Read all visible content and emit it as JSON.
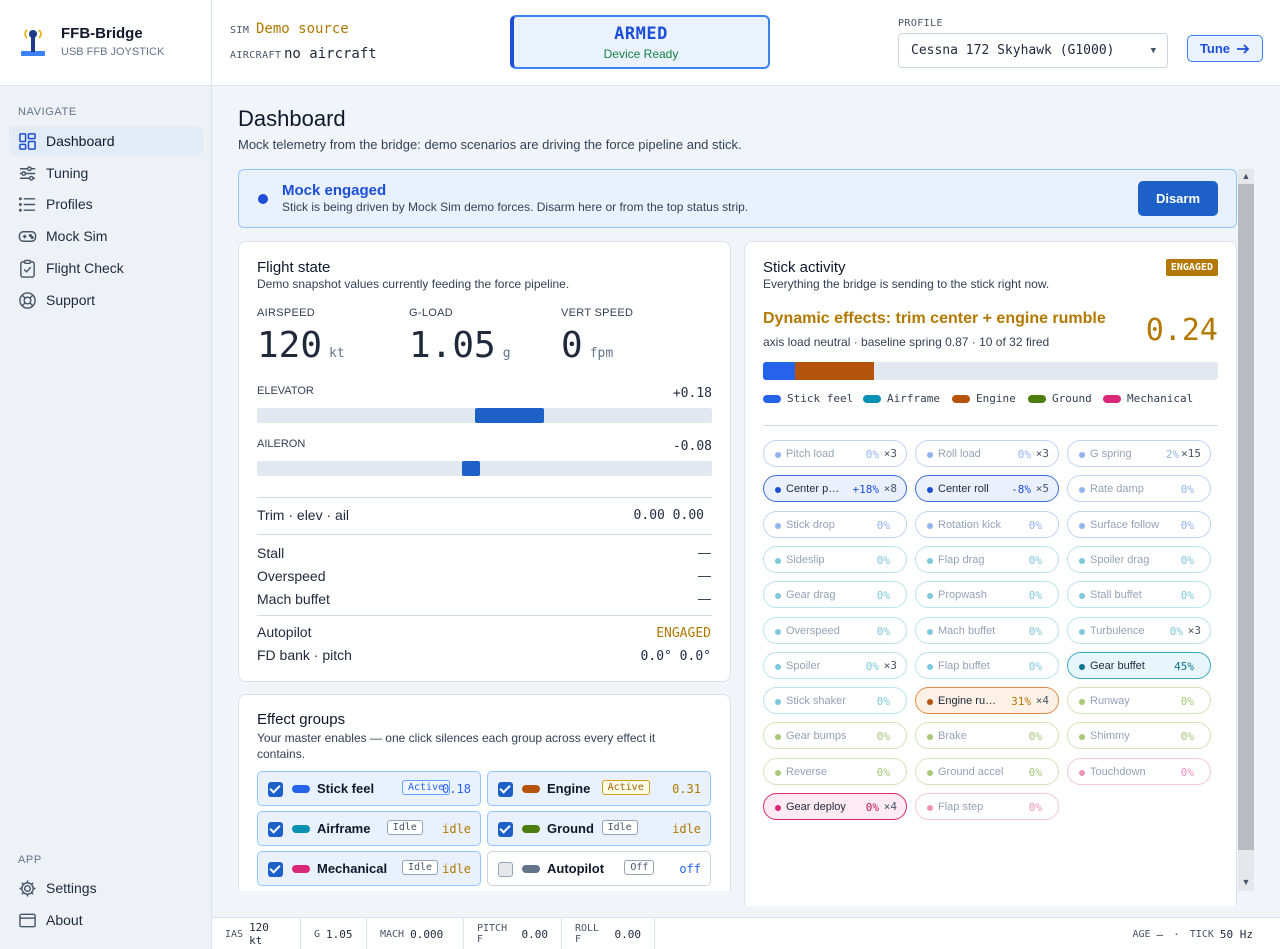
{
  "brand": {
    "name": "FFB-Bridge",
    "subtitle": "USB FFB JOYSTICK"
  },
  "nav": {
    "heading": "NAVIGATE",
    "items": [
      {
        "label": "Dashboard",
        "icon": "dashboard-icon"
      },
      {
        "label": "Tuning",
        "icon": "sliders-icon"
      },
      {
        "label": "Profiles",
        "icon": "list-icon"
      },
      {
        "label": "Mock Sim",
        "icon": "gamepad-icon"
      },
      {
        "label": "Flight Check",
        "icon": "clipboard-check-icon"
      },
      {
        "label": "Support",
        "icon": "lifebuoy-icon"
      }
    ],
    "app_heading": "APP",
    "app_items": [
      {
        "label": "Settings",
        "icon": "gear-icon"
      },
      {
        "label": "About",
        "icon": "window-icon"
      }
    ]
  },
  "header": {
    "sim_label": "SIM",
    "sim_value": "Demo source",
    "aircraft_label": "AIRCRAFT",
    "aircraft_value": "no aircraft",
    "armed_title": "ARMED",
    "armed_sub": "Device Ready",
    "profile_label": "PROFILE",
    "profile_value": "Cessna 172 Skyhawk (G1000)",
    "tune_label": "Tune"
  },
  "page": {
    "title": "Dashboard",
    "subtitle": "Mock telemetry from the bridge: demo scenarios are driving the force pipeline and stick."
  },
  "banner": {
    "title": "Mock engaged",
    "text": "Stick is being driven by Mock Sim demo forces. Disarm here or from the top status strip.",
    "button": "Disarm"
  },
  "flight": {
    "title": "Flight state",
    "subtitle": "Demo snapshot values currently feeding the force pipeline.",
    "airspeed_label": "AIRSPEED",
    "airspeed": "120",
    "airspeed_unit": "kt",
    "gload_label": "G-LOAD",
    "gload": "1.05",
    "gload_unit": "g",
    "vs_label": "VERT SPEED",
    "vs": "0",
    "vs_unit": "fpm",
    "elevator_label": "ELEVATOR",
    "elevator": "+0.18",
    "elevator_value": 0.18,
    "aileron_label": "AILERON",
    "aileron": "-0.08",
    "aileron_value": -0.08,
    "trim_label": "Trim · elev · ail",
    "trim_value": "0.00 0.00",
    "stall_label": "Stall",
    "stall_value": "—",
    "overspeed_label": "Overspeed",
    "overspeed_value": "—",
    "mach_label": "Mach buffet",
    "mach_value": "—",
    "ap_label": "Autopilot",
    "ap_value": "ENGAGED",
    "fd_label": "FD bank · pitch",
    "fd_value": "0.0° 0.0°"
  },
  "groups": {
    "title": "Effect groups",
    "subtitle": "Your master enables — one click silences each group across every effect it contains.",
    "items": [
      {
        "name": "Stick feel",
        "badge": "Active",
        "value": "0.18",
        "color": "#2563eb",
        "checked": true,
        "vcolor": "#2563eb",
        "btype": "act"
      },
      {
        "name": "Engine",
        "badge": "Active",
        "value": "0.31",
        "color": "#b45309",
        "checked": true,
        "vcolor": "#b27800",
        "btype": "acte"
      },
      {
        "name": "Airframe",
        "badge": "Idle",
        "value": "idle",
        "color": "#0891b2",
        "checked": true,
        "vcolor": "#b27800",
        "btype": ""
      },
      {
        "name": "Ground",
        "badge": "Idle",
        "value": "idle",
        "color": "#4d7c0f",
        "checked": true,
        "vcolor": "#b27800",
        "btype": ""
      },
      {
        "name": "Mechanical",
        "badge": "Idle",
        "value": "idle",
        "color": "#db2777",
        "checked": true,
        "vcolor": "#b27800",
        "btype": ""
      },
      {
        "name": "Autopilot",
        "badge": "Off",
        "value": "off",
        "color": "#64748b",
        "checked": false,
        "vcolor": "#2563eb",
        "btype": ""
      }
    ]
  },
  "stick": {
    "title": "Stick activity",
    "subtitle": "Everything the bridge is sending to the stick right now.",
    "badge": "ENGAGED",
    "dyn_title": "Dynamic effects: trim center + engine rumble",
    "dyn_sub": "axis load neutral · baseline spring 0.87 · 10 of 32 fired",
    "dyn_value": "0.24",
    "mix": [
      {
        "color": "#2563eb",
        "fraction": 0.07
      },
      {
        "color": "#b45309",
        "fraction": 0.175
      }
    ],
    "legend": [
      {
        "name": "Stick feel",
        "color": "#2563eb"
      },
      {
        "name": "Airframe",
        "color": "#0891b2"
      },
      {
        "name": "Engine",
        "color": "#b45309"
      },
      {
        "name": "Ground",
        "color": "#4d7c0f"
      },
      {
        "name": "Mechanical",
        "color": "#db2777"
      }
    ],
    "chips": [
      {
        "name": "Pitch load",
        "pct": "0%",
        "count": "×3",
        "g": "feel"
      },
      {
        "name": "Roll load",
        "pct": "0%",
        "count": "×3",
        "g": "feel"
      },
      {
        "name": "G spring",
        "pct": "2%",
        "count": "×15",
        "g": "feel"
      },
      {
        "name": "Center p…",
        "pct": "+18%",
        "count": "×8",
        "g": "feel",
        "hot": true
      },
      {
        "name": "Center roll",
        "pct": "-8%",
        "count": "×5",
        "g": "feel",
        "hot": true
      },
      {
        "name": "Rate damp",
        "pct": "0%",
        "count": "",
        "g": "feel"
      },
      {
        "name": "Stick drop",
        "pct": "0%",
        "count": "",
        "g": "feel"
      },
      {
        "name": "Rotation kick",
        "pct": "0%",
        "count": "",
        "g": "feel"
      },
      {
        "name": "Surface follow",
        "pct": "0%",
        "count": "",
        "g": "feel"
      },
      {
        "name": "Sideslip",
        "pct": "0%",
        "count": "",
        "g": "air"
      },
      {
        "name": "Flap drag",
        "pct": "0%",
        "count": "",
        "g": "air"
      },
      {
        "name": "Spoiler drag",
        "pct": "0%",
        "count": "",
        "g": "air"
      },
      {
        "name": "Gear drag",
        "pct": "0%",
        "count": "",
        "g": "air"
      },
      {
        "name": "Propwash",
        "pct": "0%",
        "count": "",
        "g": "air"
      },
      {
        "name": "Stall buffet",
        "pct": "0%",
        "count": "",
        "g": "air"
      },
      {
        "name": "Overspeed",
        "pct": "0%",
        "count": "",
        "g": "air"
      },
      {
        "name": "Mach buffet",
        "pct": "0%",
        "count": "",
        "g": "air"
      },
      {
        "name": "Turbulence",
        "pct": "0%",
        "count": "×3",
        "g": "air"
      },
      {
        "name": "Spoiler",
        "pct": "0%",
        "count": "×3",
        "g": "air"
      },
      {
        "name": "Flap buffet",
        "pct": "0%",
        "count": "",
        "g": "air"
      },
      {
        "name": "Gear buffet",
        "pct": "45%",
        "count": "",
        "g": "air",
        "hot": true
      },
      {
        "name": "Stick shaker",
        "pct": "0%",
        "count": "",
        "g": "air"
      },
      {
        "name": "Engine ru…",
        "pct": "31%",
        "count": "×4",
        "g": "eng",
        "hot": true
      },
      {
        "name": "Runway",
        "pct": "0%",
        "count": "",
        "g": "gnd"
      },
      {
        "name": "Gear bumps",
        "pct": "0%",
        "count": "",
        "g": "gnd"
      },
      {
        "name": "Brake",
        "pct": "0%",
        "count": "",
        "g": "gnd"
      },
      {
        "name": "Shimmy",
        "pct": "0%",
        "count": "",
        "g": "gnd"
      },
      {
        "name": "Reverse",
        "pct": "0%",
        "count": "",
        "g": "gnd"
      },
      {
        "name": "Ground accel",
        "pct": "0%",
        "count": "",
        "g": "gnd"
      },
      {
        "name": "Touchdown",
        "pct": "0%",
        "count": "",
        "g": "mech"
      },
      {
        "name": "Gear deploy",
        "pct": "0%",
        "count": "×4",
        "g": "mech",
        "hot": true
      },
      {
        "name": "Flap step",
        "pct": "0%",
        "count": "",
        "g": "mech"
      }
    ]
  },
  "status": {
    "items": [
      {
        "k": "IAS",
        "v": "120 kt"
      },
      {
        "k": "G",
        "v": "1.05"
      },
      {
        "k": "MACH",
        "v": "0.000"
      },
      {
        "k": "PITCH F",
        "v": "0.00"
      },
      {
        "k": "ROLL F",
        "v": "0.00"
      }
    ],
    "age_label": "AGE",
    "age_value": "—",
    "dot": "·",
    "tick_label": "TICK",
    "tick_value": "50 Hz"
  }
}
